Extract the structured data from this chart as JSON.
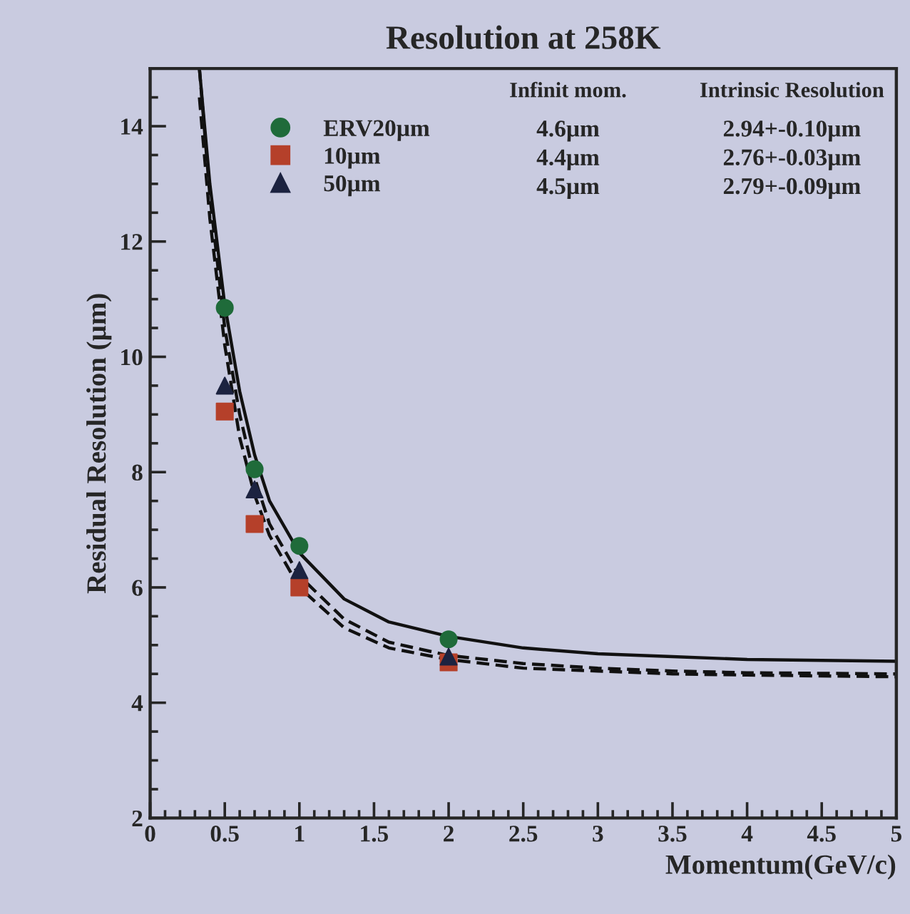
{
  "chart_data": {
    "type": "scatter",
    "title": "Resolution at 258K",
    "xlabel": "Momentum(GeV/c)",
    "ylabel": "Residual Resolution (µm)",
    "x": [
      0.5,
      0.7,
      1,
      2
    ],
    "series": [
      {
        "name": "ERV20µm",
        "color": "#1f6b3a",
        "marker": "circle",
        "values": [
          10.85,
          8.05,
          6.72,
          5.1
        ]
      },
      {
        "name": "10µm",
        "color": "#b5402a",
        "marker": "square",
        "values": [
          9.05,
          7.1,
          6.0,
          4.7
        ]
      },
      {
        "name": "50µm",
        "color": "#1c2340",
        "marker": "triangle",
        "values": [
          9.5,
          7.7,
          6.3,
          4.8
        ]
      },
      {
        "type": "line",
        "color": "#111111",
        "line_style": "solid",
        "x": [
          0.33,
          0.4,
          0.5,
          0.6,
          0.7,
          0.8,
          1,
          1.3,
          1.6,
          2,
          2.5,
          3,
          3.5,
          4,
          5
        ],
        "values": [
          15,
          13,
          10.9,
          9.4,
          8.3,
          7.5,
          6.6,
          5.8,
          5.4,
          5.15,
          4.95,
          4.85,
          4.8,
          4.75,
          4.72
        ]
      },
      {
        "type": "line",
        "color": "#111111",
        "line_style": "dashed",
        "x": [
          0.33,
          0.4,
          0.5,
          0.6,
          0.7,
          0.8,
          1,
          1.3,
          1.6,
          2,
          2.5,
          3,
          3.5,
          4,
          5
        ],
        "values": [
          14.5,
          12.4,
          10.2,
          8.6,
          7.6,
          6.9,
          6.0,
          5.3,
          4.95,
          4.75,
          4.6,
          4.55,
          4.5,
          4.48,
          4.45
        ]
      },
      {
        "type": "line",
        "color": "#111111",
        "line_style": "dashed",
        "x": [
          0.33,
          0.4,
          0.5,
          0.6,
          0.7,
          0.8,
          1,
          1.3,
          1.6,
          2,
          2.5,
          3,
          3.5,
          4,
          5
        ],
        "values": [
          15,
          12.8,
          10.5,
          9.0,
          7.9,
          7.1,
          6.2,
          5.45,
          5.05,
          4.82,
          4.68,
          4.6,
          4.55,
          4.52,
          4.5
        ]
      }
    ],
    "xlim": [
      0,
      5
    ],
    "xticks": [
      0,
      0.5,
      1,
      1.5,
      2,
      2.5,
      3,
      3.5,
      4,
      4.5,
      5
    ],
    "ylim": [
      2,
      15
    ],
    "yticks": [
      2,
      4,
      6,
      8,
      10,
      12,
      14
    ],
    "grid": false,
    "legend": "top left",
    "annotations": [
      "Infinit mom.",
      "Intrinsic Resolution",
      "4.6µm",
      "2.94+-0.10µm",
      "4.4µm",
      "2.76+-0.03µm",
      "4.5µm",
      "2.79+-0.09µm"
    ]
  }
}
